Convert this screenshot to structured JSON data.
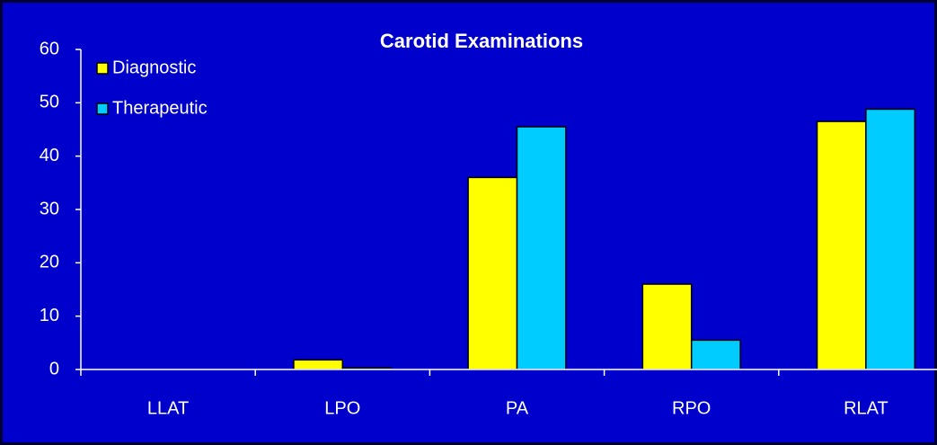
{
  "chart_data": {
    "type": "bar",
    "title": "Carotid Examinations",
    "categories": [
      "LLAT",
      "LPO",
      "PA",
      "RPO",
      "RLAT"
    ],
    "series": [
      {
        "name": "Diagnostic",
        "color": "#ffff00",
        "values": [
          0,
          1.8,
          36,
          16,
          46.5
        ]
      },
      {
        "name": "Therapeutic",
        "color": "#00ccff",
        "values": [
          0,
          0.3,
          45.5,
          5.5,
          48.8
        ]
      }
    ],
    "ylim": [
      0,
      60
    ],
    "yticks": [
      0,
      10,
      20,
      30,
      40,
      50,
      60
    ],
    "legend": "top-left"
  }
}
